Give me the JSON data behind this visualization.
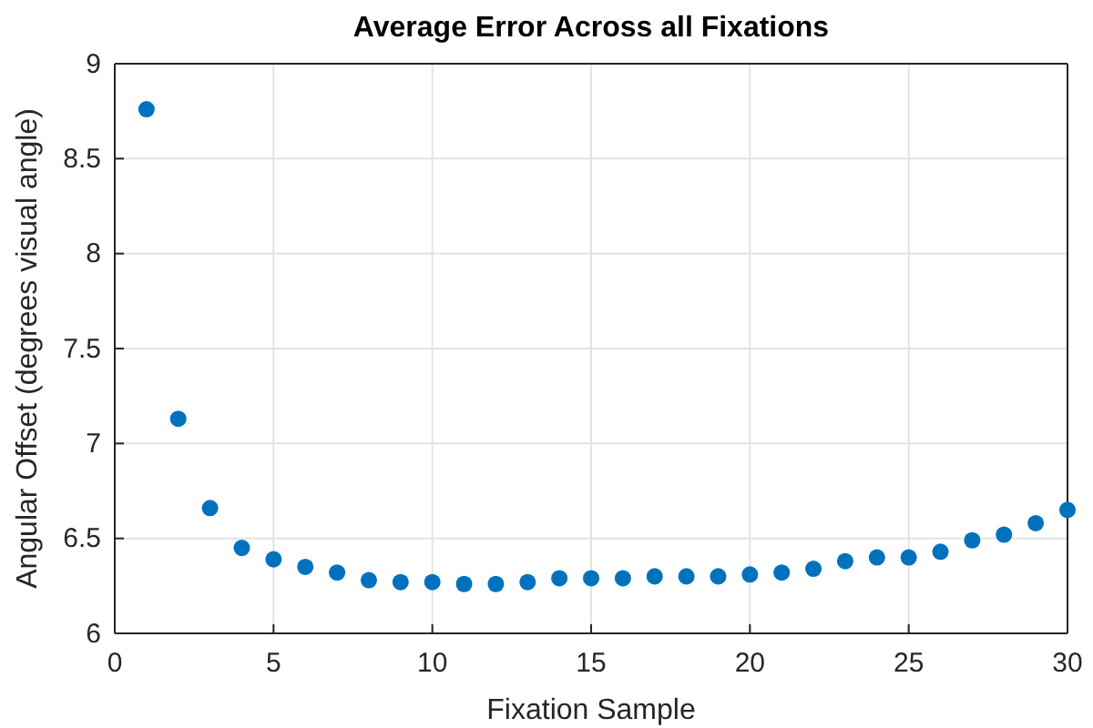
{
  "chart_data": {
    "type": "scatter",
    "title": "Average Error Across all Fixations",
    "xlabel": "Fixation Sample",
    "ylabel": "Angular Offset (degrees visual angle)",
    "x": [
      1,
      2,
      3,
      4,
      5,
      6,
      7,
      8,
      9,
      10,
      11,
      12,
      13,
      14,
      15,
      16,
      17,
      18,
      19,
      20,
      21,
      22,
      23,
      24,
      25,
      26,
      27,
      28,
      29,
      30
    ],
    "series": [
      {
        "color": "#0072bd",
        "values": [
          8.76,
          7.13,
          6.66,
          6.45,
          6.39,
          6.35,
          6.32,
          6.28,
          6.27,
          6.27,
          6.26,
          6.26,
          6.27,
          6.29,
          6.29,
          6.29,
          6.3,
          6.3,
          6.3,
          6.31,
          6.32,
          6.34,
          6.38,
          6.4,
          6.4,
          6.43,
          6.49,
          6.52,
          6.58,
          6.65
        ]
      }
    ],
    "xlim": [
      0,
      30
    ],
    "xticks": [
      0,
      5,
      10,
      15,
      20,
      25,
      30
    ],
    "ylim": [
      6,
      9
    ],
    "yticks": [
      6,
      6.5,
      7,
      7.5,
      8,
      8.5,
      9
    ],
    "grid": true,
    "marker": "circle"
  }
}
